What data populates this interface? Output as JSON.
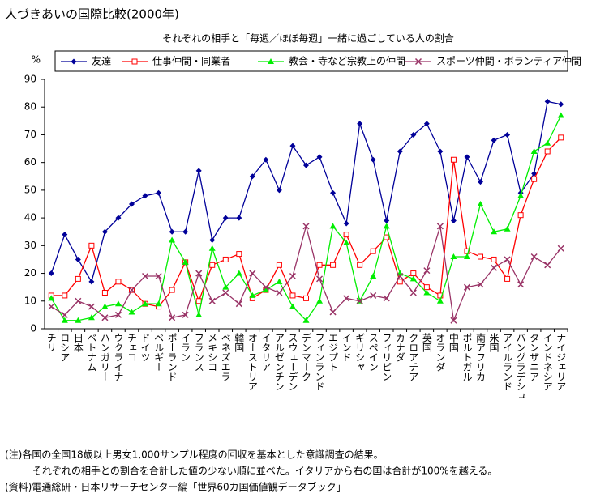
{
  "chart_data": {
    "type": "line",
    "title": "人づきあいの国際比較(2000年)",
    "subtitle": "それぞれの相手と「毎週／ほぼ毎週」一緒に過ごしている人の割合",
    "y_label": "%",
    "categories": [
      "チリ",
      "ロシア",
      "日本",
      "ベトナム",
      "ハンガリー",
      "ウクライナ",
      "チェコ",
      "ドイツ",
      "ベルギー",
      "ポーランド",
      "イラン",
      "フランス",
      "メキシコ",
      "ベネズエラ",
      "韓国",
      "オーストリア",
      "イタリア",
      "アルゼンチン",
      "スウェーデン",
      "デンマーク",
      "フィンランド",
      "エジプト",
      "インド",
      "ギリシャ",
      "スペイン",
      "フィリピン",
      "カナダ",
      "クロアチア",
      "英国",
      "オランダ",
      "中国",
      "ポルトガル",
      "南アフリカ",
      "米国",
      "アイルランド",
      "バングラデシュ",
      "タンザニア",
      "インドネシア",
      "ナイジェリア"
    ],
    "series": [
      {
        "name": "友達",
        "color": "#000099",
        "marker": "diamond",
        "values": [
          20,
          34,
          25,
          17,
          35,
          40,
          45,
          48,
          49,
          35,
          35,
          57,
          32,
          40,
          40,
          55,
          61,
          50,
          66,
          59,
          62,
          49,
          38,
          74,
          61,
          39,
          64,
          70,
          74,
          64,
          39,
          62,
          53,
          68,
          70,
          49,
          56,
          82,
          81
        ]
      },
      {
        "name": "仕事仲間・同業者",
        "color": "#ff0000",
        "marker": "square",
        "values": [
          12,
          12,
          18,
          30,
          13,
          17,
          14,
          9,
          8,
          14,
          24,
          10,
          23,
          25,
          27,
          11,
          14,
          23,
          12,
          11,
          23,
          23,
          34,
          23,
          28,
          33,
          17,
          20,
          15,
          12,
          61,
          28,
          26,
          25,
          18,
          41,
          54,
          64,
          69
        ]
      },
      {
        "name": "教会・寺など宗教上の仲間",
        "color": "#00ee00",
        "marker": "triangle",
        "values": [
          11,
          3,
          3,
          4,
          8,
          9,
          6,
          9,
          9,
          32,
          24,
          5,
          29,
          15,
          20,
          12,
          14,
          17,
          8,
          3,
          10,
          37,
          31,
          10,
          19,
          37,
          20,
          18,
          13,
          10,
          26,
          26,
          45,
          35,
          36,
          48,
          64,
          67,
          77
        ]
      },
      {
        "name": "スポーツ仲間・ボランティア仲間",
        "color": "#993366",
        "marker": "x",
        "values": [
          8,
          5,
          10,
          8,
          4,
          5,
          14,
          19,
          19,
          4,
          5,
          20,
          10,
          13,
          9,
          20,
          15,
          13,
          19,
          37,
          18,
          6,
          11,
          10,
          12,
          11,
          19,
          13,
          21,
          37,
          3,
          15,
          16,
          22,
          25,
          16,
          26,
          23,
          29
        ]
      }
    ],
    "ylim": [
      0,
      90
    ],
    "yticks": [
      0,
      10,
      20,
      30,
      40,
      50,
      60,
      70,
      80,
      90
    ],
    "grid": false,
    "legend": "top",
    "notes": [
      "(注)各国の全国18歳以上男女1,000サンプル程度の回収を基本とした意識調査の結果。",
      "それぞれの相手との割合を合計した値の少ない順に並べた。イタリアから右の国は合計が100%を越える。",
      "(資料)電通総研・日本リサーチセンター編「世界60カ国価値観データブック」"
    ]
  }
}
